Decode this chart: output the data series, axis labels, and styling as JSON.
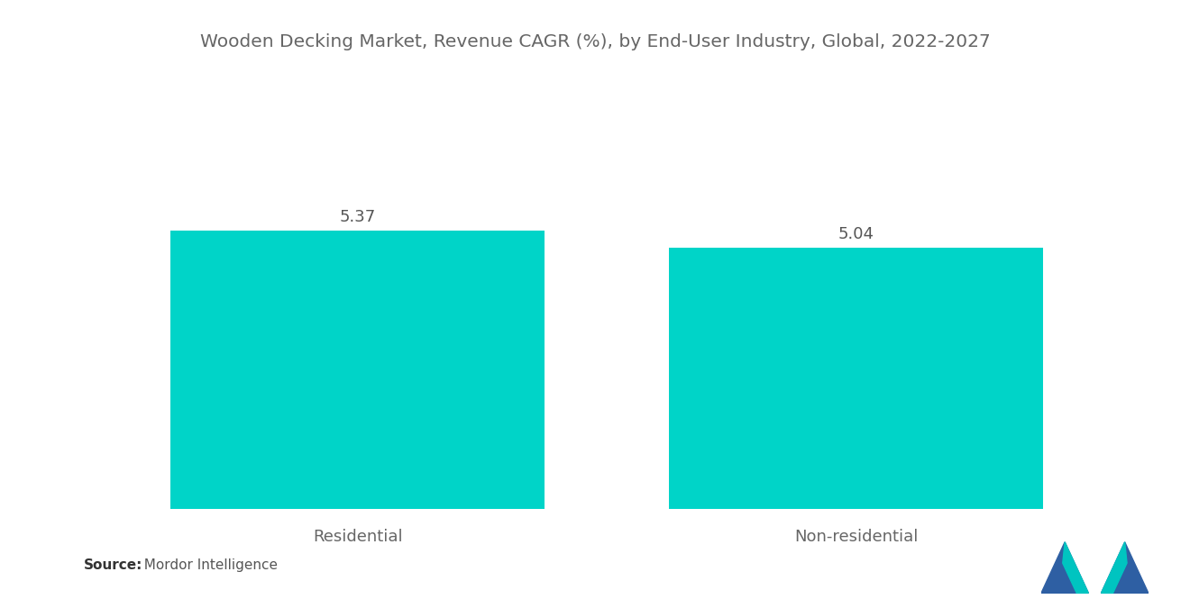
{
  "title": "Wooden Decking Market, Revenue CAGR (%), by End-User Industry, Global, 2022-2027",
  "categories": [
    "Residential",
    "Non-residential"
  ],
  "values": [
    5.37,
    5.04
  ],
  "bar_color": "#00D4C8",
  "value_labels": [
    "5.37",
    "5.04"
  ],
  "source_bold": "Source:",
  "source_text": "  Mordor Intelligence",
  "title_fontsize": 14.5,
  "label_fontsize": 13,
  "value_fontsize": 13,
  "source_fontsize": 11,
  "background_color": "#ffffff",
  "ylim": [
    0,
    7.5
  ],
  "title_color": "#666666",
  "label_color": "#666666",
  "value_color": "#555555",
  "logo_blue": "#2E5FA3",
  "logo_teal": "#00C4C0"
}
